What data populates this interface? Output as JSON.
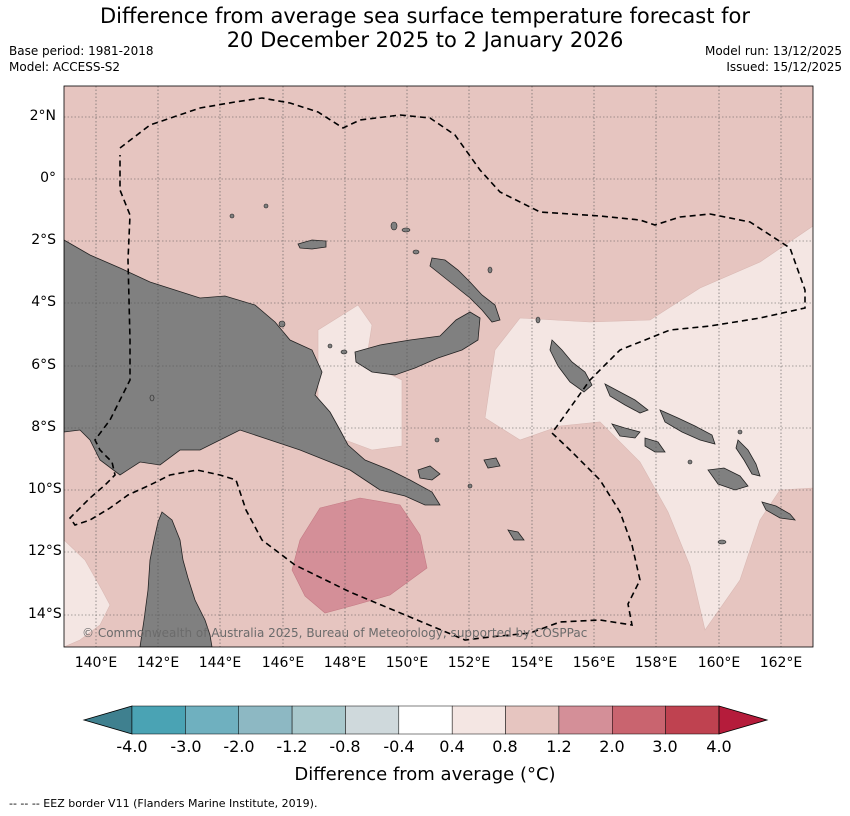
{
  "title_line1": "Difference from average sea surface temperature forecast for",
  "title_line2": "20 December 2025 to 2 January 2026",
  "base_period": "Base period: 1981-2018",
  "model": "Model: ACCESS-S2",
  "model_run": "Model run: 13/12/2025",
  "issued": "Issued: 15/12/2025",
  "lat_labels": [
    "2°N",
    "0°",
    "2°S",
    "4°S",
    "6°S",
    "8°S",
    "10°S",
    "12°S",
    "14°S"
  ],
  "lon_labels": [
    "140°E",
    "142°E",
    "144°E",
    "146°E",
    "148°E",
    "150°E",
    "152°E",
    "154°E",
    "156°E",
    "158°E",
    "160°E",
    "162°E"
  ],
  "copyright": "© Commonwealth of Australia 2025, Bureau of Meteorology, supported by COSPPac",
  "colorbar": {
    "labels": [
      "-4.0",
      "-3.0",
      "-2.0",
      "-1.2",
      "-0.8",
      "-0.4",
      "0.4",
      "0.8",
      "1.2",
      "2.0",
      "3.0",
      "4.0"
    ],
    "colors": [
      "#3f808f",
      "#4aa3b4",
      "#6fb0bf",
      "#8db8c3",
      "#a8c8cc",
      "#cfd9dc",
      "#ffffff",
      "#f4e6e3",
      "#e6c5c0",
      "#d48f98",
      "#c9646f",
      "#bf4250",
      "#b51c3b"
    ],
    "title": "Difference from average (°C)"
  },
  "map_colors": {
    "anomaly_0_4_to_0_8": "#f4e6e3",
    "anomaly_0_8_to_1_2": "#e6c5c0",
    "anomaly_1_2_to_2_0": "#d48f98",
    "land": "#808080"
  },
  "footer": "--  --  -- EEZ border V11 (Flanders Marine Institute, 2019)."
}
